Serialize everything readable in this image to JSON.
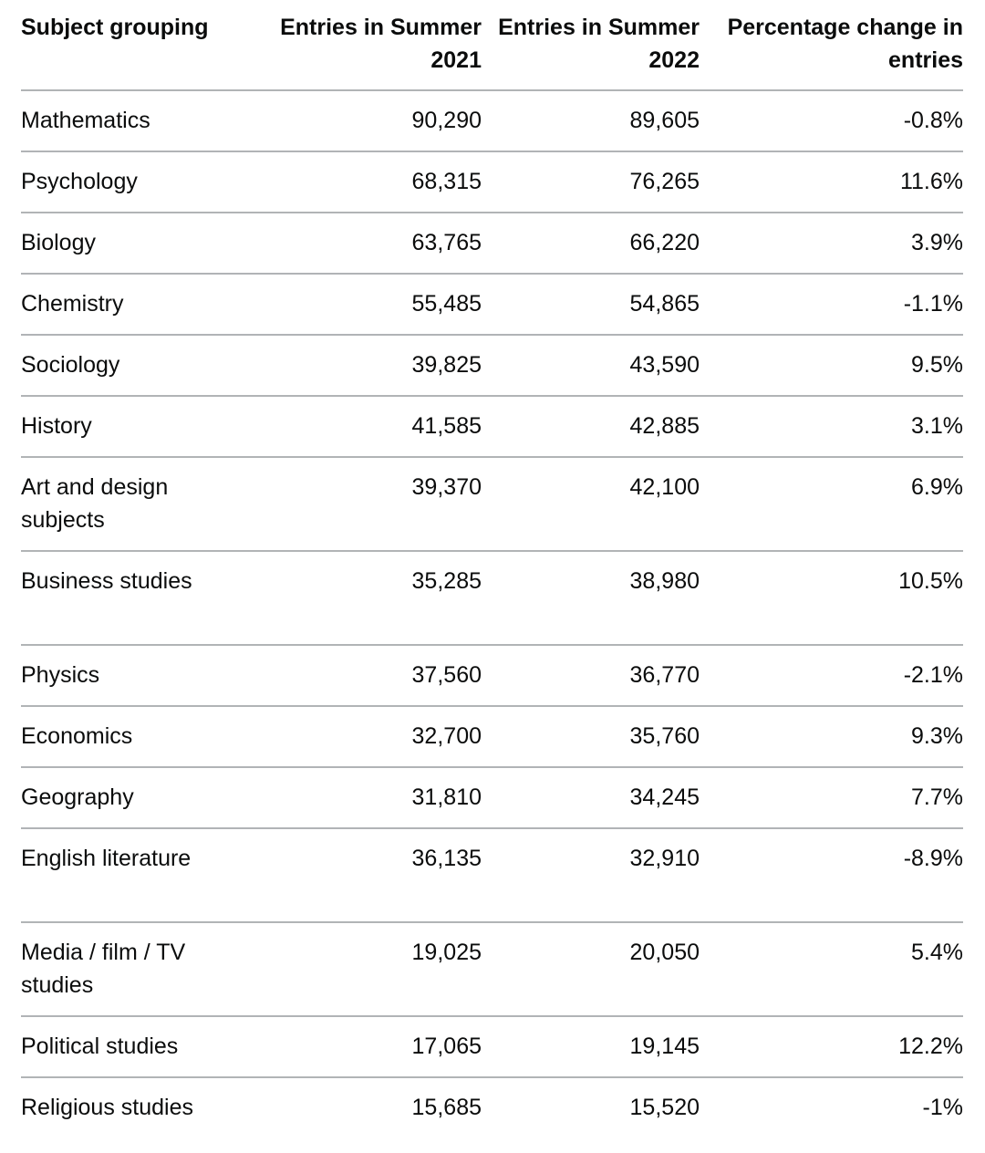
{
  "table": {
    "headers": {
      "subject": "Subject grouping",
      "entries_2021": "Entries in Summer 2021",
      "entries_2022": "Entries in Summer 2022",
      "pct_change": "Percentage change in entries"
    },
    "rows": [
      {
        "subject": "Mathematics",
        "entries_2021": "90,290",
        "entries_2022": "89,605",
        "pct_change": "-0.8%"
      },
      {
        "subject": "Psychology",
        "entries_2021": "68,315",
        "entries_2022": "76,265",
        "pct_change": "11.6%"
      },
      {
        "subject": "Biology",
        "entries_2021": "63,765",
        "entries_2022": "66,220",
        "pct_change": "3.9%"
      },
      {
        "subject": "Chemistry",
        "entries_2021": "55,485",
        "entries_2022": "54,865",
        "pct_change": "-1.1%"
      },
      {
        "subject": "Sociology",
        "entries_2021": "39,825",
        "entries_2022": "43,590",
        "pct_change": "9.5%"
      },
      {
        "subject": "History",
        "entries_2021": "41,585",
        "entries_2022": "42,885",
        "pct_change": "3.1%"
      },
      {
        "subject": "Art and design subjects",
        "entries_2021": "39,370",
        "entries_2022": "42,100",
        "pct_change": "6.9%"
      },
      {
        "subject": "Business studies",
        "entries_2021": "35,285",
        "entries_2022": "38,980",
        "pct_change": "10.5%"
      },
      {
        "subject": "Physics",
        "entries_2021": "37,560",
        "entries_2022": "36,770",
        "pct_change": "-2.1%"
      },
      {
        "subject": "Economics",
        "entries_2021": "32,700",
        "entries_2022": "35,760",
        "pct_change": "9.3%"
      },
      {
        "subject": "Geography",
        "entries_2021": "31,810",
        "entries_2022": "34,245",
        "pct_change": "7.7%"
      },
      {
        "subject": "English literature",
        "entries_2021": "36,135",
        "entries_2022": "32,910",
        "pct_change": "-8.9%"
      },
      {
        "subject": "Media / film / TV studies",
        "entries_2021": "19,025",
        "entries_2022": "20,050",
        "pct_change": "5.4%"
      },
      {
        "subject": "Political studies",
        "entries_2021": "17,065",
        "entries_2022": "19,145",
        "pct_change": "12.2%"
      },
      {
        "subject": "Religious studies",
        "entries_2021": "15,685",
        "entries_2022": "15,520",
        "pct_change": "-1%"
      }
    ]
  },
  "chart_data": {
    "type": "table",
    "columns": [
      "Subject grouping",
      "Entries in Summer 2021",
      "Entries in Summer 2022",
      "Percentage change in entries"
    ],
    "categories": [
      "Mathematics",
      "Psychology",
      "Biology",
      "Chemistry",
      "Sociology",
      "History",
      "Art and design subjects",
      "Business studies",
      "Physics",
      "Economics",
      "Geography",
      "English literature",
      "Media / film / TV studies",
      "Political studies",
      "Religious studies"
    ],
    "series": [
      {
        "name": "Entries in Summer 2021",
        "values": [
          90290,
          68315,
          63765,
          55485,
          39825,
          41585,
          39370,
          35285,
          37560,
          32700,
          31810,
          36135,
          19025,
          17065,
          15685
        ]
      },
      {
        "name": "Entries in Summer 2022",
        "values": [
          89605,
          76265,
          66220,
          54865,
          43590,
          42885,
          42100,
          38980,
          36770,
          35760,
          34245,
          32910,
          20050,
          19145,
          15520
        ]
      },
      {
        "name": "Percentage change in entries",
        "values": [
          -0.8,
          11.6,
          3.9,
          -1.1,
          9.5,
          3.1,
          6.9,
          10.5,
          -2.1,
          9.3,
          7.7,
          -8.9,
          5.4,
          12.2,
          -1
        ]
      }
    ]
  }
}
